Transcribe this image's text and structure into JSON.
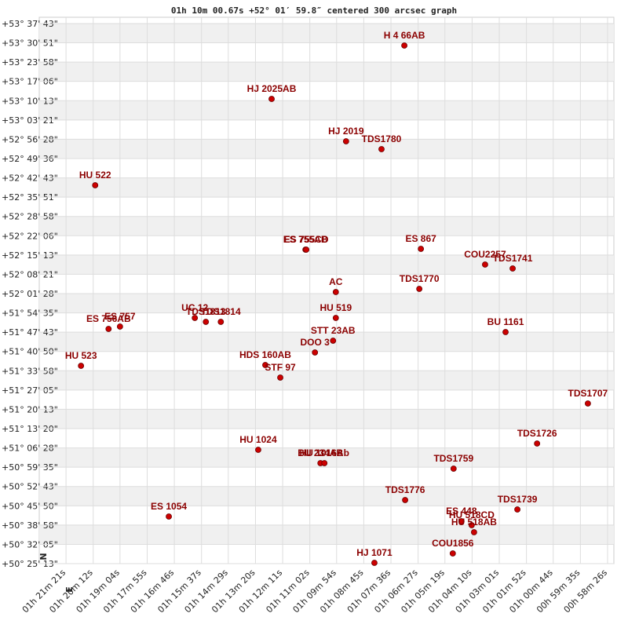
{
  "chart_data": {
    "type": "scatter",
    "title": "01h 10m 00.67s +52° 01′ 59.8″ centered 300 arcsec graph",
    "compass": [
      "N",
      "E"
    ],
    "color": "#cc0000",
    "label_color": "#8b0000",
    "grid": true,
    "xlim": [
      4949,
      3490
    ],
    "ylim": [
      181513,
      193063
    ],
    "xticks": [
      {
        "value": 4881,
        "label": "01h 21m 21s"
      },
      {
        "value": 4812,
        "label": "01h 20m 12s"
      },
      {
        "value": 4744,
        "label": "01h 19m 04s"
      },
      {
        "value": 4675,
        "label": "01h 17m 55s"
      },
      {
        "value": 4606,
        "label": "01h 16m 46s"
      },
      {
        "value": 4537,
        "label": "01h 15m 37s"
      },
      {
        "value": 4469,
        "label": "01h 14m 29s"
      },
      {
        "value": 4400,
        "label": "01h 13m 20s"
      },
      {
        "value": 4331,
        "label": "01h 12m 11s"
      },
      {
        "value": 4262,
        "label": "01h 11m 02s"
      },
      {
        "value": 4194,
        "label": "01h 09m 54s"
      },
      {
        "value": 4125,
        "label": "01h 08m 45s"
      },
      {
        "value": 4056,
        "label": "01h 07m 36s"
      },
      {
        "value": 3987,
        "label": "01h 06m 27s"
      },
      {
        "value": 3919,
        "label": "01h 05m 19s"
      },
      {
        "value": 3850,
        "label": "01h 04m 10s"
      },
      {
        "value": 3781,
        "label": "01h 03m 01s"
      },
      {
        "value": 3712,
        "label": "01h 01m 52s"
      },
      {
        "value": 3644,
        "label": "01h 00m 44s"
      },
      {
        "value": 3575,
        "label": "00h 59m 35s"
      },
      {
        "value": 3506,
        "label": "00h 58m 26s"
      }
    ],
    "yticks": [
      {
        "value": 193063,
        "label": "+53° 37' 43\""
      },
      {
        "value": 192651,
        "label": "+53° 30' 51\""
      },
      {
        "value": 192238,
        "label": "+53° 23' 58\""
      },
      {
        "value": 191826,
        "label": "+53° 17' 06\""
      },
      {
        "value": 191413,
        "label": "+53° 10' 13\""
      },
      {
        "value": 191001,
        "label": "+53° 03' 21\""
      },
      {
        "value": 190588,
        "label": "+52° 56' 28\""
      },
      {
        "value": 190176,
        "label": "+52° 49' 36\""
      },
      {
        "value": 189763,
        "label": "+52° 42' 43\""
      },
      {
        "value": 189351,
        "label": "+52° 35' 51\""
      },
      {
        "value": 188938,
        "label": "+52° 28' 58\""
      },
      {
        "value": 188526,
        "label": "+52° 22' 06\""
      },
      {
        "value": 188113,
        "label": "+52° 15' 13\""
      },
      {
        "value": 187701,
        "label": "+52° 08' 21\""
      },
      {
        "value": 187288,
        "label": "+52° 01' 28\""
      },
      {
        "value": 186875,
        "label": "+51° 54' 35\""
      },
      {
        "value": 186463,
        "label": "+51° 47' 43\""
      },
      {
        "value": 186050,
        "label": "+51° 40' 50\""
      },
      {
        "value": 185638,
        "label": "+51° 33' 58\""
      },
      {
        "value": 185225,
        "label": "+51° 27' 05\""
      },
      {
        "value": 184813,
        "label": "+51° 20' 13\""
      },
      {
        "value": 184400,
        "label": "+51° 13' 20\""
      },
      {
        "value": 183988,
        "label": "+51° 06' 28\""
      },
      {
        "value": 183575,
        "label": "+50° 59' 35\""
      },
      {
        "value": 183163,
        "label": "+50° 52' 43\""
      },
      {
        "value": 182750,
        "label": "+50° 45' 50\""
      },
      {
        "value": 182338,
        "label": "+50° 38' 58\""
      },
      {
        "value": 181925,
        "label": "+50° 32' 05\""
      },
      {
        "value": 181513,
        "label": "+50° 25' 13\""
      }
    ],
    "points": [
      {
        "label": "H 4  66AB",
        "x": 4022,
        "y": 192593
      },
      {
        "label": "HJ 2025AB",
        "x": 4359,
        "y": 191451
      },
      {
        "label": "HJ 2019",
        "x": 4170,
        "y": 190545
      },
      {
        "label": "TDS1780",
        "x": 4080,
        "y": 190377
      },
      {
        "label": "HU  522",
        "x": 4807,
        "y": 189605
      },
      {
        "label": "ES  755AB",
        "x": 4273,
        "y": 188228
      },
      {
        "label": "ES  755CD",
        "x": 4271,
        "y": 188228
      },
      {
        "label": "ES  867",
        "x": 3980,
        "y": 188245
      },
      {
        "label": "COU2257",
        "x": 3817,
        "y": 187909
      },
      {
        "label": "TDS1741",
        "x": 3747,
        "y": 187825
      },
      {
        "label": "TDS1770",
        "x": 3984,
        "y": 187389
      },
      {
        "label": "AC",
        "x": 4196,
        "y": 187321
      },
      {
        "label": "HU  519",
        "x": 4196,
        "y": 186767
      },
      {
        "label": "UC   12",
        "x": 4554,
        "y": 186767
      },
      {
        "label": "TDS1813",
        "x": 4526,
        "y": 186684
      },
      {
        "label": "TDS1814",
        "x": 4488,
        "y": 186684
      },
      {
        "label": "ES  756AB",
        "x": 4773,
        "y": 186532
      },
      {
        "label": "ES  757",
        "x": 4744,
        "y": 186583
      },
      {
        "label": "STT  23AB",
        "x": 4203,
        "y": 186281
      },
      {
        "label": "DOO   3",
        "x": 4249,
        "y": 186029
      },
      {
        "label": "BU 1161",
        "x": 3765,
        "y": 186465
      },
      {
        "label": "HU  523",
        "x": 4843,
        "y": 185743
      },
      {
        "label": "HDS 160AB",
        "x": 4375,
        "y": 185760
      },
      {
        "label": "STF  97",
        "x": 4337,
        "y": 185492
      },
      {
        "label": "TDS1707",
        "x": 3556,
        "y": 184938
      },
      {
        "label": "TDS1726",
        "x": 3685,
        "y": 184081
      },
      {
        "label": "HU 1024",
        "x": 4393,
        "y": 183947
      },
      {
        "label": "BU  234AB",
        "x": 4235,
        "y": 183662
      },
      {
        "label": "HU 1016Ab",
        "x": 4225,
        "y": 183662
      },
      {
        "label": "TDS1759",
        "x": 3897,
        "y": 183544
      },
      {
        "label": "TDS1776",
        "x": 4020,
        "y": 182873
      },
      {
        "label": "TDS1739",
        "x": 3735,
        "y": 182671
      },
      {
        "label": "ES  448",
        "x": 3877,
        "y": 182419
      },
      {
        "label": "HU  518CD",
        "x": 3851,
        "y": 182335
      },
      {
        "label": "HU  518AB",
        "x": 3845,
        "y": 182184
      },
      {
        "label": "ES 1054",
        "x": 4620,
        "y": 182520
      },
      {
        "label": "COU1856",
        "x": 3899,
        "y": 181731
      },
      {
        "label": "HJ 1071",
        "x": 4098,
        "y": 181530
      }
    ]
  }
}
